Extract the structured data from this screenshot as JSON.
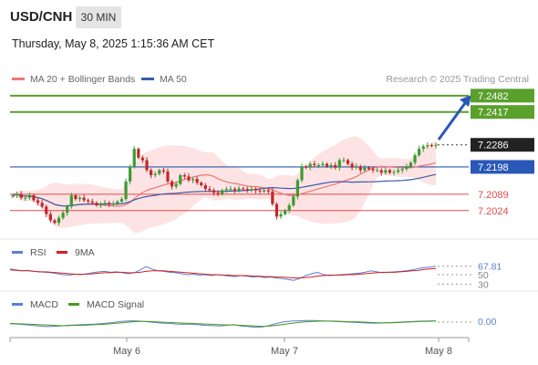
{
  "header": {
    "pair": "USD/CNH",
    "timeframe": "30 MIN",
    "datetime": "Thursday, May 8, 2025 1:15:36 AM CET"
  },
  "legend": {
    "ma20_label": "MA 20 + Bollinger Bands",
    "ma50_label": "MA 50",
    "credit": "Research © 2025 Trading Central"
  },
  "colors": {
    "candle": "#c0282d",
    "candle_bull": "#3c9a32",
    "ma20": "#f07575",
    "ma50": "#3a5ba8",
    "band_fill": "#fde0e0",
    "resistance": "#5aa02c",
    "support": "#e04a4a",
    "pivot": "#2a58b8",
    "arrow": "#2a58b8",
    "rsi": "#5a7fd6",
    "rsi_ma": "#d42020",
    "macd": "#5a7fd6",
    "macd_signal": "#4a9a18"
  },
  "chart_data": [
    {
      "type": "candlestick",
      "title": "USD/CNH",
      "levels": {
        "resistance": [
          7.2482,
          7.2417
        ],
        "current": 7.2286,
        "pivot": 7.2198,
        "support": [
          7.2089,
          7.2024
        ]
      },
      "level_labels": [
        "7.2482",
        "7.2417",
        "7.2286",
        "7.2198",
        "7.2089",
        "7.2024"
      ],
      "x_ticks": [
        "May 6",
        "May 7",
        "May 8"
      ],
      "y_range": [
        7.1925,
        7.2525
      ],
      "close": [
        7.2085,
        7.209,
        7.2075,
        7.2075,
        7.2085,
        7.2065,
        7.2055,
        7.204,
        7.201,
        7.1985,
        7.1975,
        7.1995,
        7.2015,
        7.204,
        7.2085,
        7.207,
        7.2075,
        7.2065,
        7.206,
        7.2055,
        7.2045,
        7.205,
        7.2055,
        7.205,
        7.2052,
        7.206,
        7.207,
        7.214,
        7.22,
        7.227,
        7.2235,
        7.2225,
        7.2185,
        7.2165,
        7.217,
        7.2185,
        7.218,
        7.214,
        7.212,
        7.213,
        7.2165,
        7.216,
        7.2145,
        7.215,
        7.2135,
        7.2125,
        7.211,
        7.2105,
        7.2095,
        7.209,
        7.2105,
        7.211,
        7.211,
        7.2105,
        7.2112,
        7.211,
        7.2105,
        7.211,
        7.2104,
        7.21,
        7.2105,
        7.21,
        7.205,
        7.2,
        7.201,
        7.2025,
        7.2045,
        7.208,
        7.2145,
        7.22,
        7.2195,
        7.221,
        7.2205,
        7.2205,
        7.221,
        7.22,
        7.2205,
        7.2195,
        7.2225,
        7.2225,
        7.221,
        7.2195,
        7.22,
        7.2185,
        7.2195,
        7.219,
        7.2185,
        7.2185,
        7.2175,
        7.2185,
        7.2175,
        7.2178,
        7.2185,
        7.219,
        7.22,
        7.2215,
        7.2245,
        7.227,
        7.228,
        7.2285,
        7.2282,
        7.2286
      ]
    },
    {
      "type": "line",
      "title": "RSI",
      "series": [
        {
          "name": "RSI",
          "values": [
            62,
            60,
            58,
            59,
            57,
            56,
            55,
            54,
            52,
            50,
            49,
            51,
            50,
            52,
            54,
            56,
            57,
            55,
            56,
            54,
            52,
            54,
            60,
            67,
            62,
            58,
            57,
            55,
            54,
            52,
            50,
            51,
            49,
            50,
            48,
            50,
            49,
            47,
            46,
            48,
            47,
            45,
            46,
            44,
            45,
            43,
            42,
            40,
            38,
            42,
            48,
            52,
            55,
            50,
            48,
            49,
            50,
            51,
            52,
            53,
            55,
            58,
            56,
            54,
            55,
            56,
            57,
            58,
            60,
            63,
            65,
            66,
            67.81
          ]
        },
        {
          "name": "9MA",
          "values": [
            60,
            59,
            58,
            58,
            57,
            56,
            56,
            55,
            54,
            53,
            52,
            51,
            51,
            51,
            52,
            53,
            54,
            54,
            55,
            55,
            54,
            54,
            55,
            57,
            58,
            58,
            58,
            57,
            56,
            55,
            54,
            53,
            52,
            51,
            50,
            50,
            49,
            49,
            48,
            48,
            48,
            47,
            47,
            46,
            46,
            45,
            45,
            44,
            43,
            43,
            44,
            45,
            47,
            48,
            49,
            49,
            49,
            50,
            50,
            51,
            52,
            53,
            54,
            55,
            55,
            55,
            56,
            57,
            58,
            59,
            61,
            62,
            63
          ]
        }
      ],
      "y_ticks": [
        30,
        50,
        67.81
      ],
      "value_label": "67.81"
    },
    {
      "type": "line",
      "title": "MACD",
      "series": [
        {
          "name": "MACD",
          "values": [
            -5,
            -6,
            -8,
            -10,
            -12,
            -14,
            -13,
            -12,
            -10,
            -9,
            -8,
            -7,
            -6,
            -4,
            -2,
            1,
            3,
            4,
            3,
            1,
            -1,
            -3,
            -4,
            -6,
            -7,
            -6,
            -8,
            -10,
            -11,
            -12,
            -10,
            -8,
            -12,
            -14,
            -16,
            -15,
            -10,
            -4,
            1,
            3,
            4,
            5,
            5,
            4,
            3,
            2,
            1,
            0,
            -1,
            -2,
            -3,
            -3,
            -2,
            -1,
            0,
            1,
            2,
            3,
            3.5,
            4
          ]
        },
        {
          "name": "MACD Signal",
          "values": [
            -4,
            -5,
            -6,
            -7,
            -8,
            -9,
            -10,
            -11,
            -11,
            -10,
            -10,
            -9,
            -8,
            -7,
            -5,
            -3,
            -1,
            1,
            2,
            2,
            1,
            0,
            -1,
            -2,
            -3,
            -4,
            -5,
            -6,
            -7,
            -8,
            -9,
            -9,
            -10,
            -11,
            -12,
            -13,
            -12,
            -10,
            -7,
            -4,
            -1,
            1,
            2,
            3,
            3,
            3,
            2,
            1,
            1,
            0,
            -1,
            -2,
            -2,
            -2,
            -1,
            0,
            1,
            2,
            2.5,
            3
          ]
        }
      ],
      "value_label": "0.00"
    }
  ],
  "panels": {
    "rsi_label": "RSI",
    "rsi_ma_label": "9MA",
    "macd_label": "MACD",
    "macd_signal_label": "MACD Signal"
  }
}
